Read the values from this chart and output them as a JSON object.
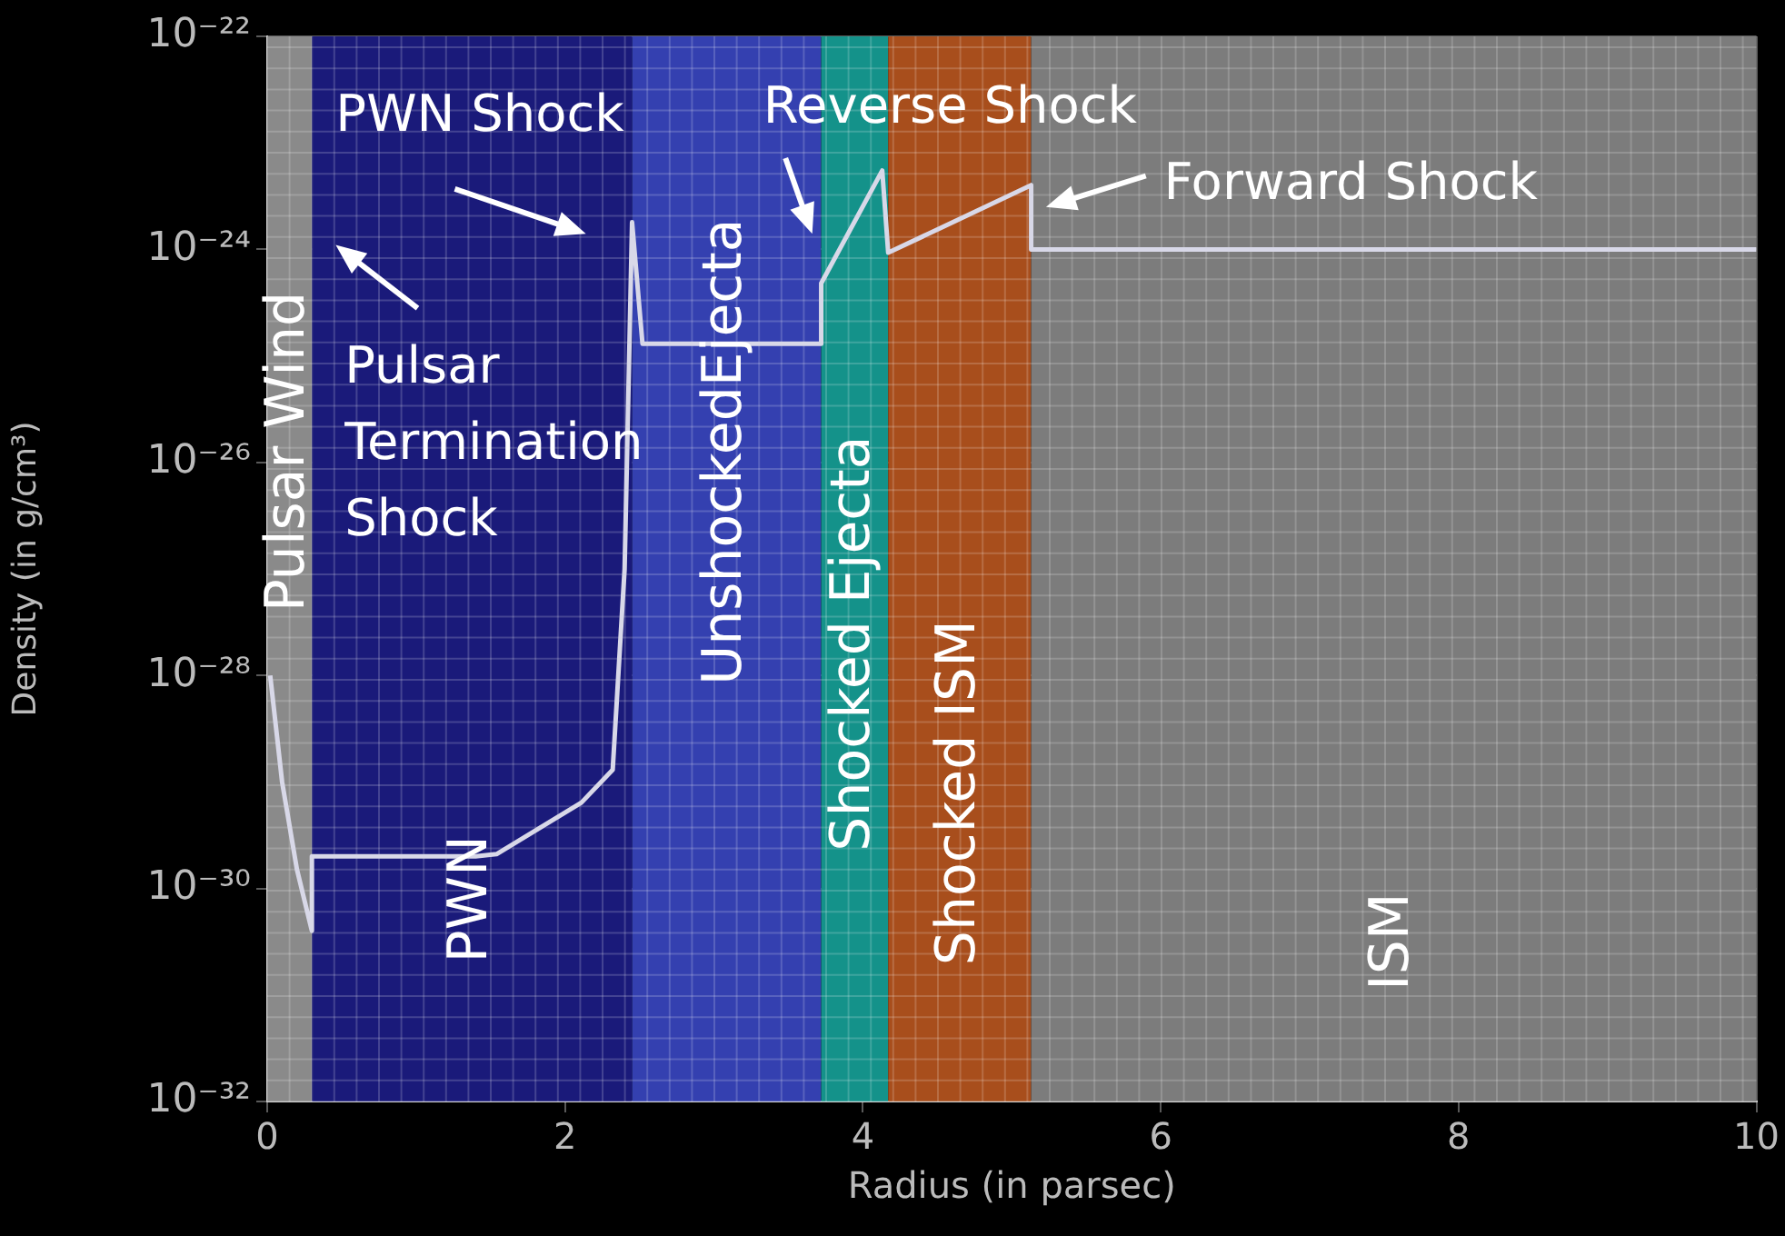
{
  "chart_data": {
    "type": "line",
    "xlabel": "Radius (in parsec)",
    "ylabel": "Density (in g/cm³)",
    "xlim": [
      0,
      10
    ],
    "xticks": [
      0,
      2,
      4,
      6,
      8,
      10
    ],
    "ylim": [
      1e-32,
      1e-22
    ],
    "yticks": [
      {
        "value": 1e-32,
        "label": "10⁻³²"
      },
      {
        "value": 1e-30,
        "label": "10⁻³⁰"
      },
      {
        "value": 1e-28,
        "label": "10⁻²⁸"
      },
      {
        "value": 1e-26,
        "label": "10⁻²⁶"
      },
      {
        "value": 1e-24,
        "label": "10⁻²⁴"
      },
      {
        "value": 1e-22,
        "label": "10⁻²²"
      }
    ],
    "log": "y",
    "grid": true,
    "legend": false,
    "marker": "none",
    "line_style": "solid",
    "series": [
      {
        "color": "#d8d8e8",
        "x": [
          0.02,
          0.1,
          0.2,
          0.3,
          0.3,
          1.4,
          1.54,
          2.11,
          2.32,
          2.4,
          2.45,
          2.52,
          3.72,
          3.72,
          4.13,
          4.17,
          5.13,
          5.13,
          10
        ],
        "values": [
          1e-28,
          1e-29,
          1.5e-30,
          4e-31,
          2e-30,
          2e-30,
          2.1e-30,
          6.4e-30,
          1.3e-29,
          1e-27,
          1.8e-24,
          1.3e-25,
          1.3e-25,
          4.8e-25,
          5.5e-24,
          9.3e-25,
          4e-24,
          1e-24,
          1e-24
        ]
      }
    ],
    "bands": [
      {
        "axis": "x",
        "from": 0,
        "to": 0.3,
        "label": "Pulsar Wind",
        "color": "#8a8a8a"
      },
      {
        "axis": "x",
        "from": 0.3,
        "to": 2.45,
        "label": "PWN",
        "color": "#1a1a7a"
      },
      {
        "axis": "x",
        "from": 2.45,
        "to": 3.72,
        "label": "UnshockedEjecta",
        "color": "#3440b0"
      },
      {
        "axis": "x",
        "from": 3.72,
        "to": 4.17,
        "label": "Shocked Ejecta",
        "color": "#14928a"
      },
      {
        "axis": "x",
        "from": 4.17,
        "to": 5.13,
        "label": "Shocked ISM",
        "color": "#a84e1c"
      },
      {
        "axis": "x",
        "from": 5.13,
        "to": 10,
        "label": "ISM",
        "color": "#7c7c7c"
      }
    ],
    "annotations": [
      "Pulsar Termination Shock",
      "PWN Shock",
      "Reverse Shock",
      "Forward Shock"
    ]
  }
}
